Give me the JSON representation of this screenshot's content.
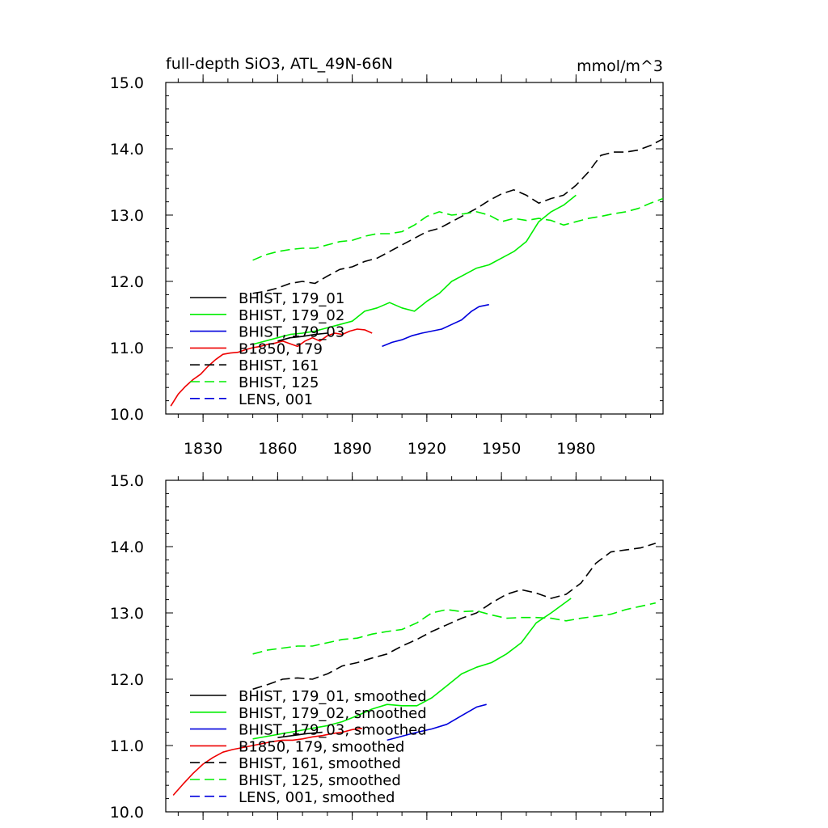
{
  "figure": {
    "title_left": "full-depth SiO3, ATL_49N-66N",
    "title_right": "mmol/m^3"
  },
  "chart_data": [
    {
      "type": "line",
      "panel": "top",
      "xlim": [
        1815,
        2015
      ],
      "ylim": [
        10,
        15
      ],
      "x_ticks": [
        1830,
        1860,
        1890,
        1920,
        1950,
        1980
      ],
      "y_ticks": [
        "10.0",
        "11.0",
        "12.0",
        "13.0",
        "14.0",
        "15.0"
      ],
      "x_tick_labels_shown": true,
      "legend_placement": "lower-left",
      "legend": [
        {
          "label": "BHIST, 179_01",
          "color": "#000000",
          "dash": "solid"
        },
        {
          "label": "BHIST, 179_02",
          "color": "#00ee00",
          "dash": "solid"
        },
        {
          "label": "BHIST, 179_03",
          "color": "#0000dd",
          "dash": "solid"
        },
        {
          "label": "B1850, 179",
          "color": "#ee0000",
          "dash": "solid"
        },
        {
          "label": "BHIST, 161",
          "color": "#000000",
          "dash": "dashed"
        },
        {
          "label": "BHIST, 125",
          "color": "#00ee00",
          "dash": "dashed"
        },
        {
          "label": "LENS, 001",
          "color": "#0000dd",
          "dash": "dashed"
        }
      ],
      "series": [
        {
          "name": "B1850, 179",
          "color": "#ee0000",
          "dash": "solid",
          "x": [
            1817,
            1820,
            1823,
            1826,
            1829,
            1832,
            1835,
            1838,
            1841,
            1844,
            1847,
            1850,
            1853,
            1856,
            1859,
            1862,
            1865,
            1868,
            1871,
            1874,
            1877,
            1880,
            1883,
            1886,
            1889,
            1892,
            1895,
            1898
          ],
          "y": [
            10.12,
            10.3,
            10.42,
            10.52,
            10.6,
            10.72,
            10.82,
            10.9,
            10.92,
            10.93,
            10.97,
            11.0,
            11.02,
            11.05,
            11.07,
            11.1,
            11.06,
            11.02,
            11.1,
            11.15,
            11.1,
            11.18,
            11.22,
            11.2,
            11.25,
            11.28,
            11.27,
            11.22
          ]
        },
        {
          "name": "BHIST, 179_01",
          "color": "#000000",
          "dash": "solid",
          "x": [
            1860,
            1865,
            1870,
            1875,
            1880
          ],
          "y": [
            11.1,
            11.15,
            11.17,
            11.2,
            11.22
          ]
        },
        {
          "name": "BHIST, 179_02",
          "color": "#00ee00",
          "dash": "solid",
          "x": [
            1850,
            1855,
            1860,
            1865,
            1870,
            1875,
            1880,
            1885,
            1890,
            1895,
            1900,
            1905,
            1910,
            1915,
            1920,
            1925,
            1930,
            1935,
            1940,
            1945,
            1950,
            1955,
            1960,
            1965,
            1970,
            1975,
            1980
          ],
          "y": [
            11.05,
            11.1,
            11.15,
            11.2,
            11.22,
            11.25,
            11.3,
            11.35,
            11.4,
            11.55,
            11.6,
            11.68,
            11.6,
            11.55,
            11.7,
            11.82,
            12.0,
            12.1,
            12.2,
            12.25,
            12.35,
            12.45,
            12.6,
            12.9,
            13.05,
            13.15,
            13.3
          ]
        },
        {
          "name": "BHIST, 179_03",
          "color": "#0000dd",
          "dash": "solid",
          "x": [
            1902,
            1906,
            1910,
            1914,
            1918,
            1922,
            1926,
            1930,
            1934,
            1938,
            1941,
            1945
          ],
          "y": [
            11.02,
            11.08,
            11.12,
            11.18,
            11.22,
            11.25,
            11.28,
            11.35,
            11.42,
            11.55,
            11.62,
            11.65
          ]
        },
        {
          "name": "BHIST, 161",
          "color": "#000000",
          "dash": "dashed",
          "x": [
            1850,
            1855,
            1860,
            1865,
            1870,
            1875,
            1880,
            1885,
            1890,
            1895,
            1900,
            1905,
            1910,
            1915,
            1920,
            1925,
            1930,
            1935,
            1940,
            1945,
            1950,
            1955,
            1960,
            1965,
            1970,
            1975,
            1980,
            1985,
            1990,
            1995,
            2000,
            2005,
            2010,
            2015
          ],
          "y": [
            11.82,
            11.85,
            11.9,
            11.97,
            12.0,
            11.97,
            12.08,
            12.18,
            12.22,
            12.3,
            12.35,
            12.45,
            12.55,
            12.65,
            12.75,
            12.8,
            12.9,
            13.0,
            13.1,
            13.22,
            13.32,
            13.38,
            13.3,
            13.18,
            13.25,
            13.3,
            13.45,
            13.65,
            13.9,
            13.95,
            13.95,
            13.98,
            14.05,
            14.15
          ]
        },
        {
          "name": "BHIST, 125",
          "color": "#00ee00",
          "dash": "dashed",
          "x": [
            1850,
            1855,
            1860,
            1865,
            1870,
            1875,
            1880,
            1885,
            1890,
            1895,
            1900,
            1905,
            1910,
            1915,
            1920,
            1925,
            1930,
            1935,
            1940,
            1945,
            1950,
            1955,
            1960,
            1965,
            1970,
            1975,
            1980,
            1985,
            1990,
            1995,
            2000,
            2005,
            2010,
            2015
          ],
          "y": [
            12.32,
            12.4,
            12.45,
            12.48,
            12.5,
            12.5,
            12.55,
            12.6,
            12.62,
            12.68,
            12.72,
            12.72,
            12.75,
            12.85,
            12.98,
            13.05,
            13.0,
            13.02,
            13.05,
            13.0,
            12.9,
            12.95,
            12.92,
            12.95,
            12.92,
            12.85,
            12.9,
            12.95,
            12.98,
            13.02,
            13.05,
            13.1,
            13.18,
            13.25
          ]
        }
      ]
    },
    {
      "type": "line",
      "panel": "bottom",
      "xlim": [
        1815,
        2015
      ],
      "ylim": [
        10,
        15
      ],
      "x_ticks": [
        1830,
        1860,
        1890,
        1920,
        1950,
        1980
      ],
      "y_ticks": [
        "10.0",
        "11.0",
        "12.0",
        "13.0",
        "14.0",
        "15.0"
      ],
      "x_tick_labels_shown": false,
      "legend_placement": "lower-left",
      "legend": [
        {
          "label": "BHIST, 179_01, smoothed",
          "color": "#000000",
          "dash": "solid"
        },
        {
          "label": "BHIST, 179_02, smoothed",
          "color": "#00ee00",
          "dash": "solid"
        },
        {
          "label": "BHIST, 179_03, smoothed",
          "color": "#0000dd",
          "dash": "solid"
        },
        {
          "label": "B1850, 179, smoothed",
          "color": "#ee0000",
          "dash": "solid"
        },
        {
          "label": "BHIST, 161, smoothed",
          "color": "#000000",
          "dash": "dashed"
        },
        {
          "label": "BHIST, 125, smoothed",
          "color": "#00ee00",
          "dash": "dashed"
        },
        {
          "label": "LENS, 001, smoothed",
          "color": "#0000dd",
          "dash": "dashed"
        }
      ],
      "series": [
        {
          "name": "B1850, 179, smoothed",
          "color": "#ee0000",
          "dash": "solid",
          "x": [
            1818,
            1822,
            1826,
            1830,
            1834,
            1838,
            1842,
            1846,
            1850,
            1854,
            1858,
            1862,
            1866,
            1870,
            1874,
            1878,
            1882,
            1886,
            1890,
            1894
          ],
          "y": [
            10.25,
            10.42,
            10.58,
            10.72,
            10.82,
            10.9,
            10.94,
            10.97,
            11.0,
            11.03,
            11.06,
            11.08,
            11.08,
            11.1,
            11.13,
            11.15,
            11.18,
            11.2,
            11.24,
            11.26
          ]
        },
        {
          "name": "BHIST, 179_01, smoothed",
          "color": "#000000",
          "dash": "solid",
          "x": [
            1860,
            1866,
            1872,
            1878
          ],
          "y": [
            11.12,
            11.15,
            11.18,
            11.2
          ]
        },
        {
          "name": "BHIST, 179_02, smoothed",
          "color": "#00ee00",
          "dash": "solid",
          "x": [
            1850,
            1856,
            1862,
            1868,
            1874,
            1880,
            1886,
            1892,
            1898,
            1904,
            1910,
            1916,
            1922,
            1928,
            1934,
            1940,
            1946,
            1952,
            1958,
            1964,
            1970,
            1978
          ],
          "y": [
            11.1,
            11.14,
            11.18,
            11.22,
            11.26,
            11.3,
            11.36,
            11.45,
            11.55,
            11.62,
            11.6,
            11.6,
            11.72,
            11.9,
            12.08,
            12.18,
            12.25,
            12.38,
            12.55,
            12.85,
            13.0,
            13.22
          ]
        },
        {
          "name": "BHIST, 179_03, smoothed",
          "color": "#0000dd",
          "dash": "solid",
          "x": [
            1904,
            1910,
            1916,
            1922,
            1928,
            1934,
            1940,
            1944
          ],
          "y": [
            11.08,
            11.14,
            11.2,
            11.25,
            11.32,
            11.45,
            11.58,
            11.62
          ]
        },
        {
          "name": "BHIST, 161, smoothed",
          "color": "#000000",
          "dash": "dashed",
          "x": [
            1850,
            1856,
            1862,
            1868,
            1874,
            1880,
            1886,
            1892,
            1898,
            1904,
            1910,
            1916,
            1922,
            1928,
            1934,
            1940,
            1946,
            1952,
            1958,
            1964,
            1970,
            1976,
            1982,
            1988,
            1994,
            2000,
            2006,
            2012
          ],
          "y": [
            11.85,
            11.92,
            12.0,
            12.02,
            12.0,
            12.08,
            12.2,
            12.25,
            12.32,
            12.38,
            12.5,
            12.6,
            12.72,
            12.82,
            12.92,
            13.0,
            13.15,
            13.28,
            13.35,
            13.3,
            13.22,
            13.28,
            13.45,
            13.75,
            13.92,
            13.95,
            13.98,
            14.05
          ]
        },
        {
          "name": "BHIST, 125, smoothed",
          "color": "#00ee00",
          "dash": "dashed",
          "x": [
            1850,
            1856,
            1862,
            1868,
            1874,
            1880,
            1886,
            1892,
            1898,
            1904,
            1910,
            1916,
            1922,
            1928,
            1934,
            1940,
            1946,
            1952,
            1958,
            1964,
            1970,
            1976,
            1982,
            1988,
            1994,
            2000,
            2006,
            2012
          ],
          "y": [
            12.38,
            12.44,
            12.47,
            12.5,
            12.5,
            12.55,
            12.6,
            12.62,
            12.68,
            12.72,
            12.75,
            12.85,
            13.0,
            13.05,
            13.02,
            13.03,
            12.97,
            12.92,
            12.93,
            12.93,
            12.92,
            12.88,
            12.92,
            12.95,
            12.98,
            13.05,
            13.1,
            13.15
          ]
        }
      ]
    }
  ]
}
